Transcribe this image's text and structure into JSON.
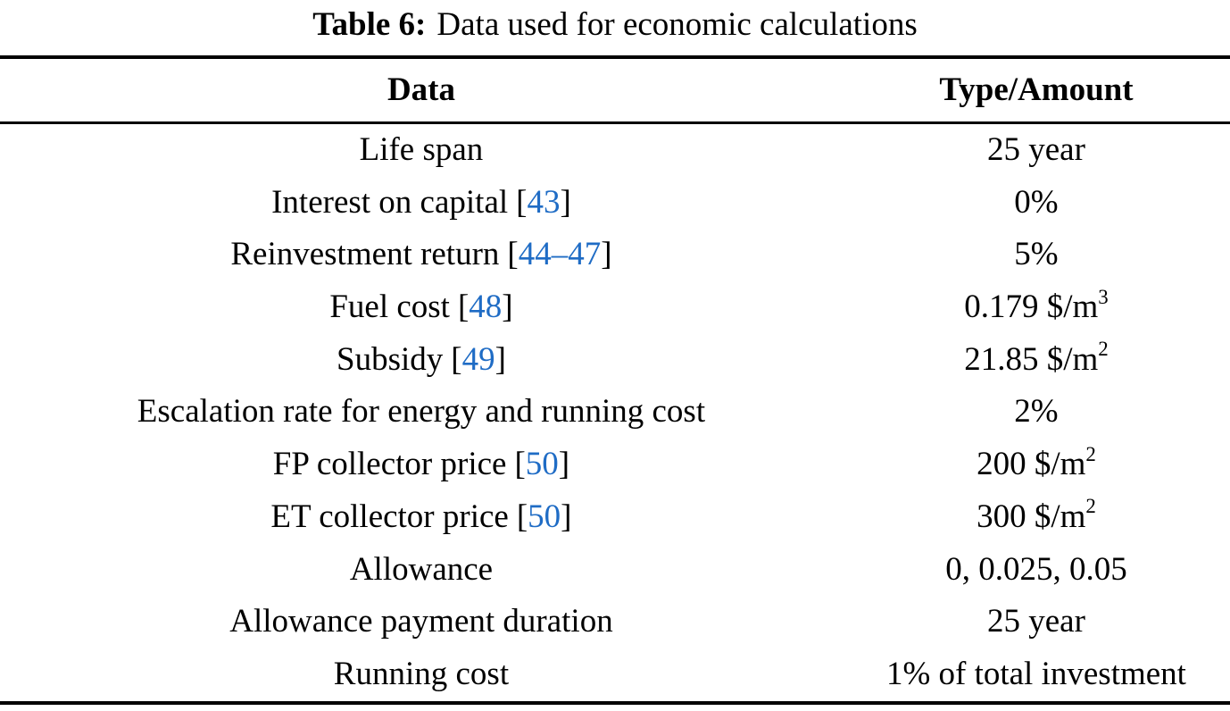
{
  "caption": {
    "label": "Table 6:",
    "text": "Data used for economic calculations"
  },
  "columns": [
    "Data",
    "Type/Amount"
  ],
  "rows": [
    {
      "label": "Life span",
      "cite": null,
      "amount": "25 year",
      "sup": null
    },
    {
      "label": "Interest on capital",
      "cite": "43",
      "amount": "0%",
      "sup": null
    },
    {
      "label": "Reinvestment return",
      "cite": "44–47",
      "amount": "5%",
      "sup": null
    },
    {
      "label": "Fuel cost",
      "cite": "48",
      "amount": "0.179 $/m",
      "sup": "3"
    },
    {
      "label": "Subsidy",
      "cite": "49",
      "amount": "21.85 $/m",
      "sup": "2"
    },
    {
      "label": "Escalation rate for energy and running cost",
      "cite": null,
      "amount": "2%",
      "sup": null
    },
    {
      "label": "FP collector price",
      "cite": "50",
      "amount": "200 $/m",
      "sup": "2"
    },
    {
      "label": "ET collector price",
      "cite": "50",
      "amount": "300 $/m",
      "sup": "2"
    },
    {
      "label": "Allowance",
      "cite": null,
      "amount": "0, 0.025, 0.05",
      "sup": null
    },
    {
      "label": "Allowance payment duration",
      "cite": null,
      "amount": "25 year",
      "sup": null
    },
    {
      "label": "Running cost",
      "cite": null,
      "amount": "1% of total investment",
      "sup": null
    }
  ],
  "colors": {
    "text": "#000000",
    "citation_link": "#1f6cc5",
    "rule": "#000000",
    "background": "#ffffff"
  }
}
